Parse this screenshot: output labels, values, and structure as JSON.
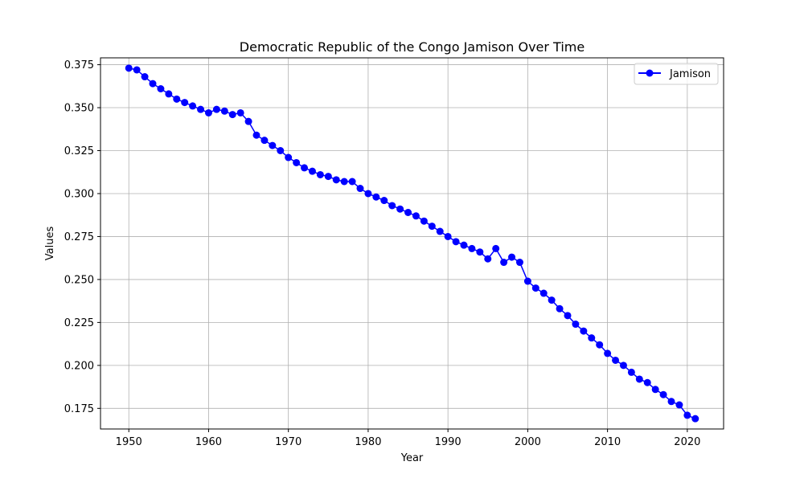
{
  "chart_data": {
    "type": "line",
    "title": "Democratic Republic of the Congo Jamison Over Time",
    "xlabel": "Year",
    "ylabel": "Values",
    "xlim": [
      1946.45,
      2024.55
    ],
    "ylim": [
      0.163,
      0.379
    ],
    "xticks": [
      1950,
      1960,
      1970,
      1980,
      1990,
      2000,
      2010,
      2020
    ],
    "yticks": [
      0.175,
      0.2,
      0.225,
      0.25,
      0.275,
      0.3,
      0.325,
      0.35,
      0.375
    ],
    "xtick_labels": [
      "1950",
      "1960",
      "1970",
      "1980",
      "1990",
      "2000",
      "2010",
      "2020"
    ],
    "ytick_labels": [
      "0.175",
      "0.200",
      "0.225",
      "0.250",
      "0.275",
      "0.300",
      "0.325",
      "0.350",
      "0.375"
    ],
    "grid": true,
    "legend_position": "top-right",
    "x": [
      1950,
      1951,
      1952,
      1953,
      1954,
      1955,
      1956,
      1957,
      1958,
      1959,
      1960,
      1961,
      1962,
      1963,
      1964,
      1965,
      1966,
      1967,
      1968,
      1969,
      1970,
      1971,
      1972,
      1973,
      1974,
      1975,
      1976,
      1977,
      1978,
      1979,
      1980,
      1981,
      1982,
      1983,
      1984,
      1985,
      1986,
      1987,
      1988,
      1989,
      1990,
      1991,
      1992,
      1993,
      1994,
      1995,
      1996,
      1997,
      1998,
      1999,
      2000,
      2001,
      2002,
      2003,
      2004,
      2005,
      2006,
      2007,
      2008,
      2009,
      2010,
      2011,
      2012,
      2013,
      2014,
      2015,
      2016,
      2017,
      2018,
      2019,
      2020,
      2021
    ],
    "series": [
      {
        "name": "Jamison",
        "color": "#0000ff",
        "marker": "circle",
        "values": [
          0.373,
          0.372,
          0.368,
          0.364,
          0.361,
          0.358,
          0.355,
          0.353,
          0.351,
          0.349,
          0.347,
          0.349,
          0.348,
          0.346,
          0.347,
          0.342,
          0.334,
          0.331,
          0.328,
          0.325,
          0.321,
          0.318,
          0.315,
          0.313,
          0.311,
          0.31,
          0.308,
          0.307,
          0.307,
          0.303,
          0.3,
          0.298,
          0.296,
          0.293,
          0.291,
          0.289,
          0.287,
          0.284,
          0.281,
          0.278,
          0.275,
          0.272,
          0.27,
          0.268,
          0.266,
          0.262,
          0.268,
          0.26,
          0.263,
          0.26,
          0.249,
          0.245,
          0.242,
          0.238,
          0.233,
          0.229,
          0.224,
          0.22,
          0.216,
          0.212,
          0.207,
          0.203,
          0.2,
          0.196,
          0.192,
          0.19,
          0.186,
          0.183,
          0.179,
          0.177,
          0.171,
          0.169
        ]
      }
    ]
  }
}
